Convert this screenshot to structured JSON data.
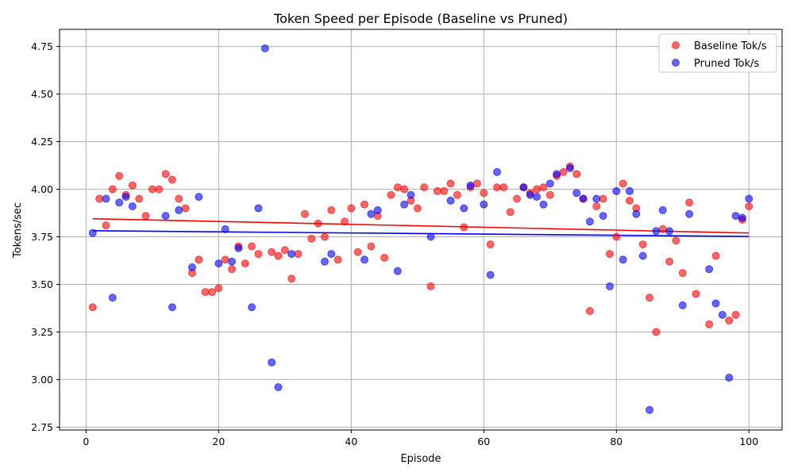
{
  "chart_data": {
    "type": "scatter",
    "title": "Token Speed per Episode (Baseline vs Pruned)",
    "xlabel": "Episode",
    "ylabel": "Tokens/sec",
    "xlim": [
      -4,
      105
    ],
    "ylim": [
      2.735,
      4.84
    ],
    "x_ticks": [
      0,
      20,
      40,
      60,
      80,
      100
    ],
    "y_ticks": [
      2.75,
      3.0,
      3.25,
      3.5,
      3.75,
      4.0,
      4.25,
      4.5,
      4.75
    ],
    "y_tick_labels": [
      "2.75",
      "3.00",
      "3.25",
      "3.50",
      "3.75",
      "4.00",
      "4.25",
      "4.50",
      "4.75"
    ],
    "grid": true,
    "legend_position": "top-right",
    "series": [
      {
        "name": "Baseline Tok/s",
        "color": "#ff0000",
        "points": [
          [
            1,
            3.38
          ],
          [
            2,
            3.95
          ],
          [
            3,
            3.81
          ],
          [
            4,
            4.0
          ],
          [
            5,
            4.07
          ],
          [
            6,
            3.97
          ],
          [
            7,
            4.02
          ],
          [
            8,
            3.95
          ],
          [
            9,
            3.86
          ],
          [
            10,
            4.0
          ],
          [
            11,
            4.0
          ],
          [
            12,
            4.08
          ],
          [
            13,
            4.05
          ],
          [
            14,
            3.95
          ],
          [
            15,
            3.9
          ],
          [
            16,
            3.56
          ],
          [
            17,
            3.63
          ],
          [
            18,
            3.46
          ],
          [
            19,
            3.46
          ],
          [
            20,
            3.48
          ],
          [
            21,
            3.63
          ],
          [
            22,
            3.58
          ],
          [
            23,
            3.7
          ],
          [
            24,
            3.61
          ],
          [
            25,
            3.7
          ],
          [
            26,
            3.66
          ],
          [
            28,
            3.67
          ],
          [
            29,
            3.65
          ],
          [
            30,
            3.68
          ],
          [
            31,
            3.53
          ],
          [
            32,
            3.66
          ],
          [
            33,
            3.87
          ],
          [
            34,
            3.74
          ],
          [
            35,
            3.82
          ],
          [
            36,
            3.75
          ],
          [
            37,
            3.89
          ],
          [
            38,
            3.63
          ],
          [
            39,
            3.83
          ],
          [
            40,
            3.9
          ],
          [
            41,
            3.67
          ],
          [
            42,
            3.92
          ],
          [
            43,
            3.7
          ],
          [
            44,
            3.86
          ],
          [
            45,
            3.64
          ],
          [
            46,
            3.97
          ],
          [
            47,
            4.01
          ],
          [
            48,
            4.0
          ],
          [
            49,
            3.94
          ],
          [
            50,
            3.9
          ],
          [
            51,
            4.01
          ],
          [
            52,
            3.49
          ],
          [
            53,
            3.99
          ],
          [
            54,
            3.99
          ],
          [
            55,
            4.03
          ],
          [
            56,
            3.97
          ],
          [
            57,
            3.8
          ],
          [
            58,
            4.01
          ],
          [
            59,
            4.03
          ],
          [
            60,
            3.98
          ],
          [
            61,
            3.71
          ],
          [
            62,
            4.01
          ],
          [
            63,
            4.01
          ],
          [
            64,
            3.88
          ],
          [
            65,
            3.95
          ],
          [
            66,
            4.01
          ],
          [
            67,
            3.98
          ],
          [
            68,
            4.0
          ],
          [
            69,
            4.01
          ],
          [
            70,
            3.97
          ],
          [
            71,
            4.07
          ],
          [
            72,
            4.09
          ],
          [
            73,
            4.12
          ],
          [
            74,
            4.08
          ],
          [
            75,
            3.95
          ],
          [
            76,
            3.36
          ],
          [
            77,
            3.91
          ],
          [
            78,
            3.95
          ],
          [
            79,
            3.66
          ],
          [
            80,
            3.75
          ],
          [
            81,
            4.03
          ],
          [
            82,
            3.94
          ],
          [
            83,
            3.9
          ],
          [
            84,
            3.71
          ],
          [
            85,
            3.43
          ],
          [
            86,
            3.25
          ],
          [
            87,
            3.79
          ],
          [
            88,
            3.62
          ],
          [
            89,
            3.73
          ],
          [
            90,
            3.56
          ],
          [
            91,
            3.93
          ],
          [
            92,
            3.45
          ],
          [
            94,
            3.29
          ],
          [
            95,
            3.65
          ],
          [
            97,
            3.31
          ],
          [
            98,
            3.34
          ],
          [
            99,
            3.84
          ],
          [
            100,
            3.91
          ]
        ],
        "trend": [
          [
            1,
            3.845
          ],
          [
            100,
            3.77
          ]
        ]
      },
      {
        "name": "Pruned Tok/s",
        "color": "#0000ff",
        "points": [
          [
            1,
            3.77
          ],
          [
            3,
            3.95
          ],
          [
            4,
            3.43
          ],
          [
            5,
            3.93
          ],
          [
            6,
            3.96
          ],
          [
            7,
            3.91
          ],
          [
            12,
            3.86
          ],
          [
            13,
            3.38
          ],
          [
            14,
            3.89
          ],
          [
            16,
            3.59
          ],
          [
            17,
            3.96
          ],
          [
            20,
            3.61
          ],
          [
            21,
            3.79
          ],
          [
            22,
            3.62
          ],
          [
            23,
            3.69
          ],
          [
            25,
            3.38
          ],
          [
            26,
            3.9
          ],
          [
            27,
            4.74
          ],
          [
            28,
            3.09
          ],
          [
            29,
            2.96
          ],
          [
            31,
            3.66
          ],
          [
            36,
            3.62
          ],
          [
            37,
            3.66
          ],
          [
            42,
            3.63
          ],
          [
            43,
            3.87
          ],
          [
            44,
            3.89
          ],
          [
            47,
            3.57
          ],
          [
            48,
            3.92
          ],
          [
            49,
            3.97
          ],
          [
            52,
            3.75
          ],
          [
            55,
            3.94
          ],
          [
            57,
            3.9
          ],
          [
            58,
            4.02
          ],
          [
            60,
            3.92
          ],
          [
            61,
            3.55
          ],
          [
            62,
            4.09
          ],
          [
            66,
            4.01
          ],
          [
            67,
            3.97
          ],
          [
            68,
            3.96
          ],
          [
            69,
            3.92
          ],
          [
            70,
            4.03
          ],
          [
            71,
            4.08
          ],
          [
            73,
            4.11
          ],
          [
            74,
            3.98
          ],
          [
            75,
            3.95
          ],
          [
            76,
            3.83
          ],
          [
            77,
            3.95
          ],
          [
            78,
            3.86
          ],
          [
            79,
            3.49
          ],
          [
            80,
            3.99
          ],
          [
            81,
            3.63
          ],
          [
            82,
            3.99
          ],
          [
            83,
            3.87
          ],
          [
            84,
            3.65
          ],
          [
            85,
            2.84
          ],
          [
            86,
            3.78
          ],
          [
            87,
            3.89
          ],
          [
            88,
            3.78
          ],
          [
            90,
            3.39
          ],
          [
            91,
            3.87
          ],
          [
            94,
            3.58
          ],
          [
            95,
            3.4
          ],
          [
            96,
            3.34
          ],
          [
            97,
            3.01
          ],
          [
            98,
            3.86
          ],
          [
            99,
            3.85
          ],
          [
            100,
            3.95
          ]
        ],
        "trend": [
          [
            1,
            3.782
          ],
          [
            100,
            3.752
          ]
        ]
      }
    ]
  }
}
